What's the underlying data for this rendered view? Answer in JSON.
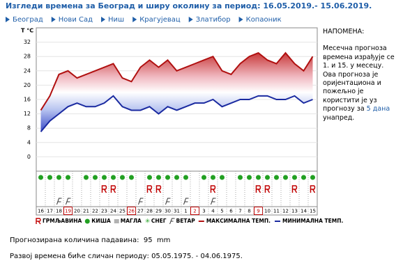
{
  "chart_data": {
    "type": "line",
    "title": "Изгледи времена за Београд и ширу околину за период: 16.05.2019.- 15.06.2019.",
    "nav": [
      "Београд",
      "Нови Сад",
      "Ниш",
      "Крагујевац",
      "Златибор",
      "Копаоник"
    ],
    "y_label": "T °C",
    "categories": [
      "16",
      "17",
      "18",
      "19",
      "20",
      "21",
      "22",
      "23",
      "24",
      "25",
      "26",
      "27",
      "28",
      "29",
      "30",
      "31",
      "1",
      "2",
      "3",
      "4",
      "5",
      "6",
      "7",
      "8",
      "9",
      "10",
      "11",
      "12",
      "13",
      "14",
      "15"
    ],
    "category_colors": [
      "#000",
      "#000",
      "#000",
      "#c00000",
      "#000",
      "#000",
      "#000",
      "#000",
      "#000",
      "#000",
      "#c00000",
      "#000",
      "#000",
      "#000",
      "#000",
      "#000",
      "#000",
      "#c00000",
      "#000",
      "#000",
      "#000",
      "#000",
      "#000",
      "#000",
      "#c00000",
      "#000",
      "#000",
      "#000",
      "#000",
      "#000",
      "#000"
    ],
    "series": [
      {
        "name": "МАКСИМАЛНА ТЕМП.",
        "color": "#b01010",
        "values": [
          13,
          17,
          23,
          24,
          22,
          23,
          24,
          25,
          26,
          22,
          21,
          25,
          27,
          25,
          27,
          24,
          25,
          26,
          27,
          28,
          24,
          23,
          26,
          28,
          29,
          27,
          26,
          29,
          26,
          24,
          28
        ]
      },
      {
        "name": "МИНИМАЛНА ТЕМП.",
        "color": "#1a2aa0",
        "values": [
          7,
          10,
          12,
          14,
          15,
          14,
          14,
          15,
          17,
          14,
          13,
          13,
          14,
          12,
          14,
          13,
          14,
          15,
          15,
          16,
          14,
          15,
          16,
          16,
          17,
          17,
          16,
          16,
          17,
          15,
          16
        ]
      }
    ],
    "legend": [
      "ГРМЉАВИНА",
      "КИША",
      "МАГЛА",
      "СНЕГ",
      "ВЕТАР"
    ],
    "weather": [
      [
        "КИША"
      ],
      [
        "КИША"
      ],
      [
        "КИША",
        "ВЕТАР"
      ],
      [
        "КИША",
        "ВЕТАР"
      ],
      [],
      [
        "КИША"
      ],
      [
        "КИША"
      ],
      [
        "КИША",
        "ГРМЉАВИНА"
      ],
      [
        "КИША",
        "ГРМЉАВИНА"
      ],
      [
        "КИША"
      ],
      [
        "КИША"
      ],
      [
        "ВЕТАР"
      ],
      [
        "КИША",
        "ГРМЉАВИНА"
      ],
      [
        "КИША",
        "ГРМЉАВИНА"
      ],
      [
        "КИША",
        "ВЕТАР"
      ],
      [
        "КИША"
      ],
      [
        "КИША",
        "ВЕТАР"
      ],
      [],
      [
        "КИША"
      ],
      [
        "КИША",
        "ГРМЉАВИНА",
        "ВЕТАР"
      ],
      [
        "КИША"
      ],
      [],
      [
        "КИША"
      ],
      [
        "КИША"
      ],
      [
        "КИША",
        "ГРМЉАВИНА"
      ],
      [
        "КИША",
        "ГРМЉАВИНА"
      ],
      [
        "КИША"
      ],
      [
        "КИША"
      ],
      [
        "КИША",
        "ГРМЉАВИНА"
      ],
      [
        "КИША"
      ],
      [
        "КИША",
        "ГРМЉАВИНА"
      ]
    ],
    "ylim": [
      -4,
      36
    ],
    "yticks": [
      0,
      4,
      8,
      12,
      16,
      20,
      24,
      28,
      32
    ],
    "grid": true
  },
  "note": {
    "title": "НАПОМЕНА:",
    "lines": [
      "Месечна прогноза",
      "времена израђује се",
      "1. и 15. у месецу.",
      "Ова прогноза је",
      "оријентациона и",
      "пожељно је",
      "користити је уз",
      "прогнозу за"
    ],
    "link": "5 дана",
    "end": "унапред."
  },
  "precipitation": {
    "label": "Прогнозирана количина падавина:",
    "value": 95,
    "unit": "mm"
  },
  "similar": "Развој времена биће сличан периоду: 05.05.1975. - 04.06.1975."
}
